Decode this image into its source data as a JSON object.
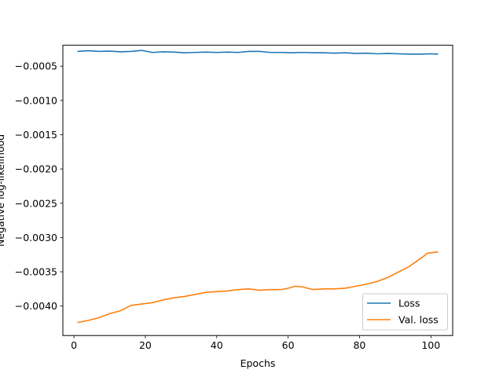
{
  "chart_data": {
    "type": "line",
    "title": "",
    "xlabel": "Epochs",
    "ylabel": "Negative log-likelihood",
    "xlim": [
      -3.1,
      106.1
    ],
    "ylim": [
      -0.00443,
      -0.000195
    ],
    "xticks": [
      0,
      20,
      40,
      60,
      80,
      100
    ],
    "xtick_labels": [
      "0",
      "20",
      "40",
      "60",
      "80",
      "100"
    ],
    "yticks": [
      -0.0005,
      -0.001,
      -0.0015,
      -0.002,
      -0.0025,
      -0.003,
      -0.0035,
      -0.004
    ],
    "ytick_labels": [
      "−0.0005",
      "−0.0010",
      "−0.0015",
      "−0.0020",
      "−0.0025",
      "−0.0030",
      "−0.0035",
      "−0.0040"
    ],
    "grid": false,
    "legend_position": "lower right",
    "series": [
      {
        "name": "Loss",
        "color": "#1f77b4",
        "x": [
          1,
          4,
          7,
          10,
          13,
          16,
          19,
          22,
          25,
          28,
          31,
          34,
          37,
          40,
          43,
          46,
          49,
          52,
          55,
          58,
          61,
          64,
          67,
          70,
          73,
          76,
          79,
          82,
          85,
          88,
          91,
          94,
          97,
          100,
          102
        ],
        "y": [
          -0.000285,
          -0.000275,
          -0.000285,
          -0.00028,
          -0.00029,
          -0.000285,
          -0.00027,
          -0.0003,
          -0.00029,
          -0.000295,
          -0.000305,
          -0.0003,
          -0.000295,
          -0.0003,
          -0.000295,
          -0.0003,
          -0.000285,
          -0.000285,
          -0.0003,
          -0.0003,
          -0.000305,
          -0.0003,
          -0.000305,
          -0.000305,
          -0.00031,
          -0.000305,
          -0.000315,
          -0.00031,
          -0.00032,
          -0.000315,
          -0.00032,
          -0.000325,
          -0.000325,
          -0.00032,
          -0.000325
        ]
      },
      {
        "name": "Val. loss",
        "color": "#ff7f0e",
        "x": [
          1,
          4,
          7,
          10,
          13,
          16,
          19,
          22,
          25,
          28,
          31,
          34,
          37,
          40,
          43,
          46,
          49,
          52,
          55,
          58,
          60,
          62,
          64,
          67,
          70,
          73,
          76,
          79,
          82,
          85,
          88,
          91,
          94,
          97,
          99,
          102
        ],
        "y": [
          -0.00424,
          -0.00421,
          -0.00417,
          -0.00411,
          -0.00407,
          -0.00399,
          -0.00397,
          -0.00395,
          -0.00391,
          -0.00388,
          -0.00386,
          -0.00383,
          -0.0038,
          -0.00379,
          -0.00378,
          -0.00376,
          -0.00375,
          -0.00377,
          -0.00376,
          -0.00376,
          -0.00374,
          -0.00371,
          -0.00372,
          -0.00376,
          -0.00375,
          -0.00375,
          -0.00374,
          -0.00371,
          -0.00368,
          -0.00364,
          -0.00358,
          -0.0035,
          -0.00342,
          -0.00331,
          -0.00323,
          -0.00321
        ]
      }
    ]
  }
}
